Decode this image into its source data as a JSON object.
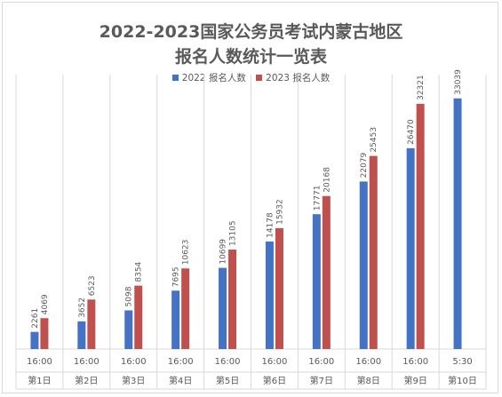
{
  "chart_data": {
    "type": "bar",
    "title": "2022-2023国家公务员考试内蒙古地区",
    "subtitle": "报名人数统计一览表",
    "categories": [
      "第1日",
      "第2日",
      "第3日",
      "第4日",
      "第5日",
      "第6日",
      "第7日",
      "第8日",
      "第9日",
      "第10日"
    ],
    "times": [
      "16:00",
      "16:00",
      "16:00",
      "16:00",
      "16:00",
      "16:00",
      "16:00",
      "16:00",
      "16:00",
      "5:30"
    ],
    "series": [
      {
        "name": "2022 报名人数",
        "color": "#4472c4",
        "values": [
          2261,
          3652,
          5098,
          7695,
          10699,
          14178,
          17771,
          22079,
          26470,
          33039
        ]
      },
      {
        "name": "2023 报名人数",
        "color": "#c0504d",
        "values": [
          4069,
          6523,
          8354,
          10623,
          13105,
          15932,
          20168,
          25453,
          32321,
          null
        ]
      }
    ],
    "ylim": [
      0,
      35000
    ],
    "grid": false,
    "legend_position": "top"
  }
}
